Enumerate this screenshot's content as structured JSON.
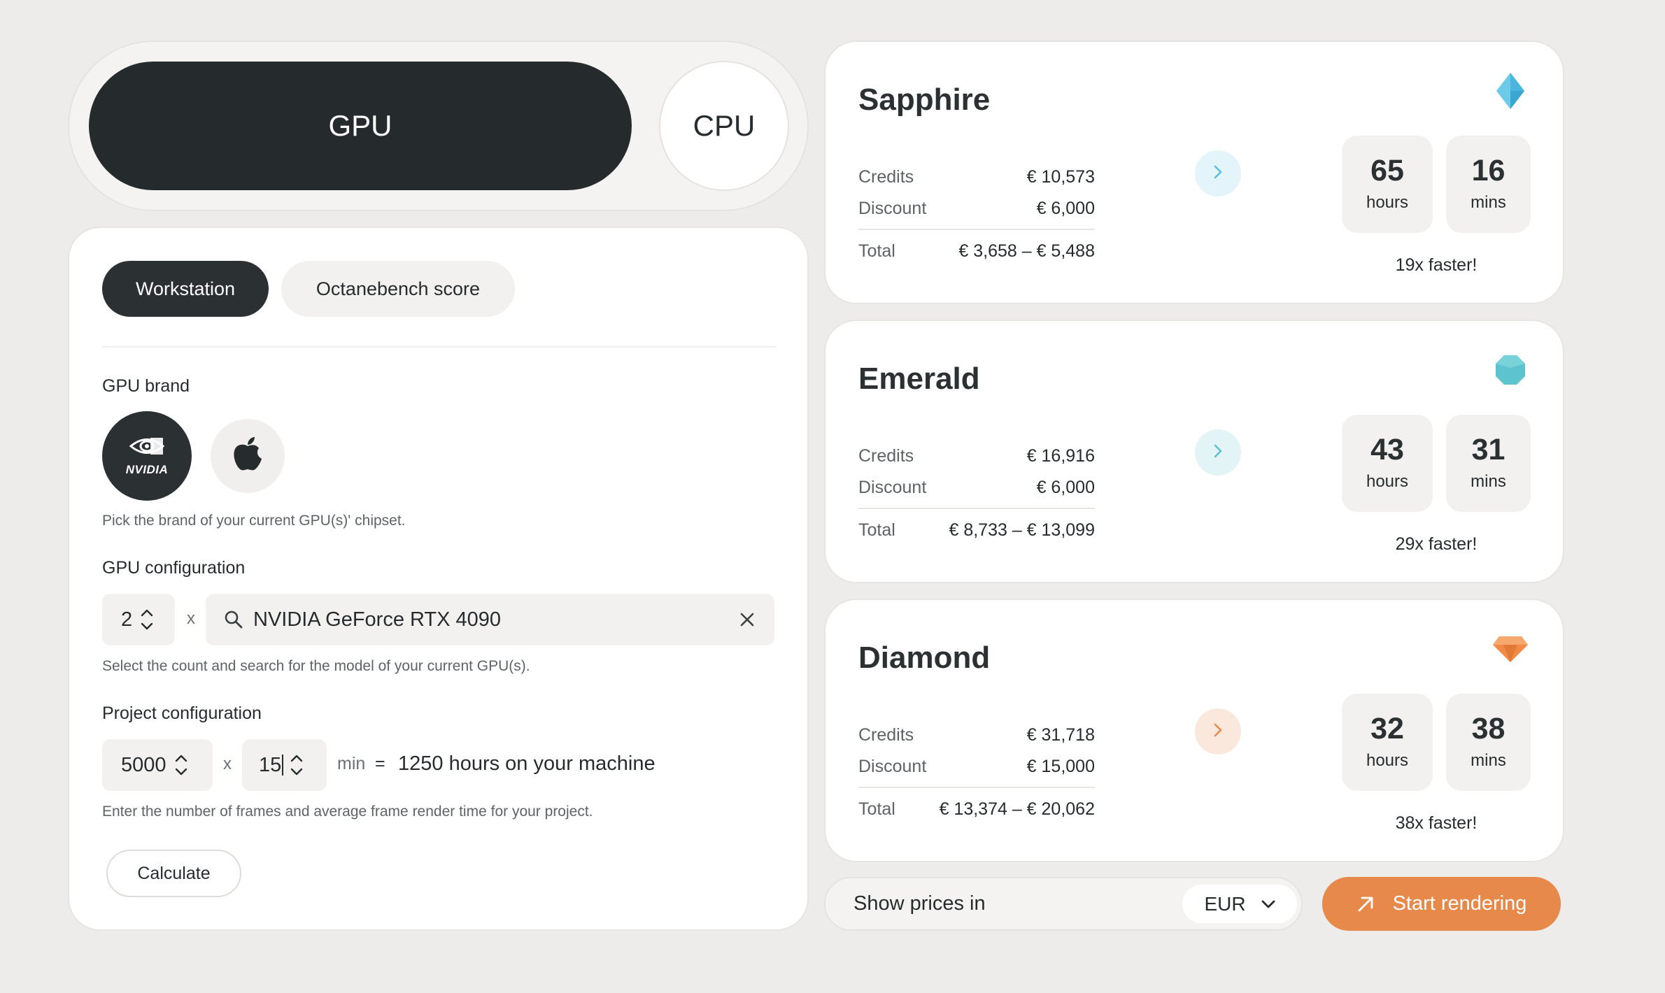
{
  "mode_toggle": {
    "gpu_label": "GPU",
    "cpu_label": "CPU"
  },
  "config": {
    "tabs": [
      {
        "label": "Workstation"
      },
      {
        "label": "Octanebench score"
      }
    ],
    "gpu_brand": {
      "label": "GPU brand",
      "nvidia_text": "NVIDIA",
      "helper": "Pick the brand of your current GPU(s)' chipset."
    },
    "gpu_configuration": {
      "label": "GPU configuration",
      "count": "2",
      "times": "x",
      "search_value": "NVIDIA GeForce RTX 4090",
      "helper": "Select the count and search for the model of your current GPU(s)."
    },
    "project_configuration": {
      "label": "Project configuration",
      "frames": "5000",
      "times": "x",
      "minutes": "15",
      "unit": "min",
      "equals": "=",
      "result": "1250 hours on your machine",
      "helper": "Enter the number of frames and average frame render time for your project."
    },
    "calculate_label": "Calculate"
  },
  "plans": [
    {
      "name": "Sapphire",
      "credits_label": "Credits",
      "credits": "€ 10,573",
      "discount_label": "Discount",
      "discount": "€ 6,000",
      "total_label": "Total",
      "total": "€ 3,658 – € 5,488",
      "hours": "65",
      "hours_label": "hours",
      "mins": "16",
      "mins_label": "mins",
      "speedup": "19x faster!",
      "accent": "#5bbde0",
      "arrow_bg": "#e3f4fb"
    },
    {
      "name": "Emerald",
      "credits_label": "Credits",
      "credits": "€ 16,916",
      "discount_label": "Discount",
      "discount": "€ 6,000",
      "total_label": "Total",
      "total": "€ 8,733 – € 13,099",
      "hours": "43",
      "hours_label": "hours",
      "mins": "31",
      "mins_label": "mins",
      "speedup": "29x faster!",
      "accent": "#5cc3cf",
      "arrow_bg": "#e3f4f6"
    },
    {
      "name": "Diamond",
      "credits_label": "Credits",
      "credits": "€ 31,718",
      "discount_label": "Discount",
      "discount": "€ 15,000",
      "total_label": "Total",
      "total": "€ 13,374 – € 20,062",
      "hours": "32",
      "hours_label": "hours",
      "mins": "38",
      "mins_label": "mins",
      "speedup": "38x faster!",
      "accent": "#e8894c",
      "arrow_bg": "#fbe8dc"
    }
  ],
  "currency": {
    "label": "Show prices in",
    "selected": "EUR"
  },
  "start_rendering_label": "Start rendering",
  "colors": {
    "dark": "#252b2d",
    "orange_accent": "#e8894c",
    "background": "#edecea"
  }
}
